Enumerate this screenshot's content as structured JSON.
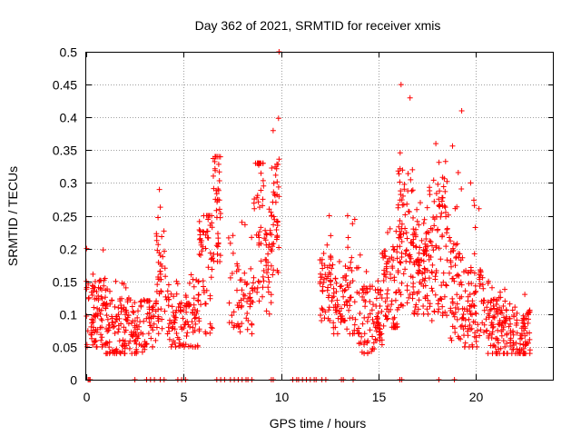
{
  "chart_data": {
    "type": "scatter",
    "title": "Day 362 of 2021, SRMTID for receiver xmis",
    "xlabel": "GPS time / hours",
    "ylabel": "SRMTID / TECUs",
    "xlim": [
      0,
      24
    ],
    "ylim": [
      0,
      0.5
    ],
    "x_ticks": [
      0,
      5,
      10,
      15,
      20
    ],
    "x_tick_labels": [
      "0",
      "5",
      "10",
      "15",
      "20"
    ],
    "y_ticks": [
      0,
      0.05,
      0.1,
      0.15,
      0.2,
      0.25,
      0.3,
      0.35,
      0.4,
      0.45,
      0.5
    ],
    "y_tick_labels": [
      "0",
      "0.05",
      "0.1",
      "0.15",
      "0.2",
      "0.25",
      "0.3",
      "0.35",
      "0.4",
      "0.45",
      "0.5"
    ],
    "grid": true,
    "marker": "plus",
    "series": [
      {
        "name": "SRMTID",
        "color": "#ff0000",
        "segments": [
          {
            "x0": 0.0,
            "x1": 1.0,
            "median": 0.1,
            "min": 0.05,
            "max": 0.2,
            "n": 90
          },
          {
            "x0": 1.0,
            "x1": 2.0,
            "median": 0.08,
            "min": 0.04,
            "max": 0.15,
            "n": 80
          },
          {
            "x0": 2.0,
            "x1": 3.0,
            "median": 0.08,
            "min": 0.04,
            "max": 0.14,
            "n": 70
          },
          {
            "x0": 3.0,
            "x1": 3.6,
            "median": 0.09,
            "min": 0.05,
            "max": 0.12,
            "n": 40
          },
          {
            "x0": 3.6,
            "x1": 4.2,
            "median": 0.15,
            "min": 0.07,
            "max": 0.29,
            "n": 45
          },
          {
            "x0": 4.2,
            "x1": 5.2,
            "median": 0.09,
            "min": 0.05,
            "max": 0.15,
            "n": 70
          },
          {
            "x0": 5.2,
            "x1": 5.8,
            "median": 0.1,
            "min": 0.05,
            "max": 0.16,
            "n": 45
          },
          {
            "x0": 5.8,
            "x1": 6.5,
            "median": 0.17,
            "min": 0.07,
            "max": 0.25,
            "n": 55
          },
          {
            "x0": 6.5,
            "x1": 6.9,
            "median": 0.27,
            "min": 0.18,
            "max": 0.34,
            "n": 40
          },
          {
            "x0": 7.3,
            "x1": 7.9,
            "median": 0.14,
            "min": 0.08,
            "max": 0.22,
            "n": 25
          },
          {
            "x0": 7.9,
            "x1": 8.6,
            "median": 0.11,
            "min": 0.07,
            "max": 0.24,
            "n": 40
          },
          {
            "x0": 8.6,
            "x1": 9.1,
            "median": 0.26,
            "min": 0.12,
            "max": 0.33,
            "n": 45
          },
          {
            "x0": 9.1,
            "x1": 9.5,
            "median": 0.18,
            "min": 0.1,
            "max": 0.26,
            "n": 30
          },
          {
            "x0": 9.5,
            "x1": 9.9,
            "median": 0.25,
            "min": 0.16,
            "max": 0.5,
            "n": 45
          },
          {
            "x0": 12.0,
            "x1": 12.6,
            "median": 0.14,
            "min": 0.09,
            "max": 0.25,
            "n": 50
          },
          {
            "x0": 12.6,
            "x1": 13.3,
            "median": 0.11,
            "min": 0.07,
            "max": 0.18,
            "n": 45
          },
          {
            "x0": 13.3,
            "x1": 14.0,
            "median": 0.12,
            "min": 0.07,
            "max": 0.25,
            "n": 45
          },
          {
            "x0": 14.0,
            "x1": 15.2,
            "median": 0.09,
            "min": 0.04,
            "max": 0.19,
            "n": 90
          },
          {
            "x0": 15.2,
            "x1": 16.0,
            "median": 0.14,
            "min": 0.08,
            "max": 0.23,
            "n": 70
          },
          {
            "x0": 16.0,
            "x1": 16.8,
            "median": 0.22,
            "min": 0.11,
            "max": 0.45,
            "n": 90
          },
          {
            "x0": 16.8,
            "x1": 17.6,
            "median": 0.17,
            "min": 0.1,
            "max": 0.27,
            "n": 80
          },
          {
            "x0": 17.6,
            "x1": 18.6,
            "median": 0.2,
            "min": 0.09,
            "max": 0.36,
            "n": 90
          },
          {
            "x0": 18.6,
            "x1": 19.4,
            "median": 0.14,
            "min": 0.06,
            "max": 0.41,
            "n": 70
          },
          {
            "x0": 19.4,
            "x1": 20.4,
            "median": 0.11,
            "min": 0.05,
            "max": 0.3,
            "n": 80
          },
          {
            "x0": 20.4,
            "x1": 21.5,
            "median": 0.08,
            "min": 0.04,
            "max": 0.15,
            "n": 90
          },
          {
            "x0": 21.5,
            "x1": 22.8,
            "median": 0.07,
            "min": 0.04,
            "max": 0.13,
            "n": 100
          }
        ],
        "zero_value_times": [
          0.1,
          0.15,
          0.2,
          2.5,
          3.1,
          3.3,
          3.5,
          3.8,
          4.0,
          4.7,
          4.9,
          5.1,
          6.7,
          6.9,
          7.1,
          7.4,
          7.6,
          7.8,
          8.0,
          8.2,
          8.3,
          8.5,
          9.5,
          9.6,
          10.6,
          10.8,
          10.9,
          11.1,
          11.3,
          11.5,
          11.7,
          11.8,
          12.1,
          12.3,
          13.1,
          13.2,
          13.7,
          16.1,
          16.2,
          18.1,
          18.9
        ]
      }
    ]
  }
}
